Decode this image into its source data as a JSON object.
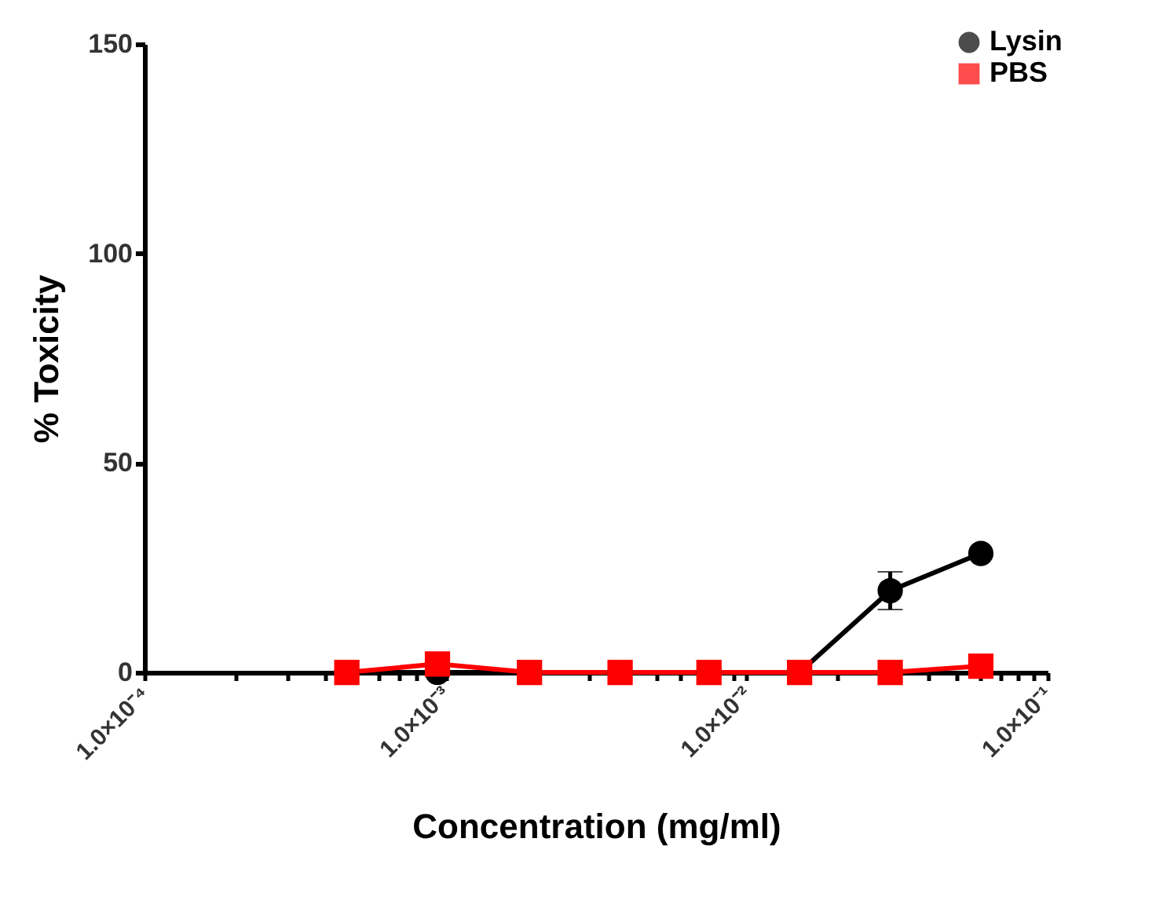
{
  "chart_data": {
    "type": "line",
    "xlabel": "Concentration (mg/ml)",
    "ylabel": "% Toxicity",
    "x": [
      0.00047,
      0.00094,
      0.0019,
      0.0038,
      0.0075,
      0.015,
      0.03,
      0.06
    ],
    "series": [
      {
        "name": "Lysin",
        "color": "#000000",
        "marker": "circle",
        "values": [
          0,
          0,
          0,
          0,
          0,
          0,
          19.5,
          28.4
        ],
        "errors": [
          null,
          null,
          null,
          null,
          null,
          null,
          4.5,
          null
        ]
      },
      {
        "name": "PBS",
        "color": "#ff0000",
        "marker": "square",
        "values": [
          0,
          2,
          0,
          0,
          0,
          0,
          0,
          1.5
        ]
      }
    ],
    "log": "x",
    "xlim": [
      0.0001,
      0.1
    ],
    "xticks": [
      {
        "value": 0.0001,
        "label": "1.0×10⁻⁴"
      },
      {
        "value": 0.0002,
        "label": null
      },
      {
        "value": 0.0003,
        "label": null
      },
      {
        "value": 0.0004,
        "label": null
      },
      {
        "value": 0.0005,
        "label": null
      },
      {
        "value": 0.0006,
        "label": null
      },
      {
        "value": 0.0007,
        "label": null
      },
      {
        "value": 0.0008,
        "label": null
      },
      {
        "value": 0.0009,
        "label": null
      },
      {
        "value": 0.001,
        "label": "1.0×10⁻³"
      },
      {
        "value": 0.002,
        "label": null
      },
      {
        "value": 0.003,
        "label": null
      },
      {
        "value": 0.004,
        "label": null
      },
      {
        "value": 0.005,
        "label": null
      },
      {
        "value": 0.006,
        "label": null
      },
      {
        "value": 0.007,
        "label": null
      },
      {
        "value": 0.008,
        "label": null
      },
      {
        "value": 0.009,
        "label": null
      },
      {
        "value": 0.01,
        "label": "1.0×10⁻²"
      },
      {
        "value": 0.02,
        "label": null
      },
      {
        "value": 0.03,
        "label": null
      },
      {
        "value": 0.04,
        "label": null
      },
      {
        "value": 0.05,
        "label": null
      },
      {
        "value": 0.06,
        "label": null
      },
      {
        "value": 0.07,
        "label": null
      },
      {
        "value": 0.08,
        "label": null
      },
      {
        "value": 0.09,
        "label": null
      },
      {
        "value": 0.1,
        "label": "1.0×10⁻¹"
      }
    ],
    "ylim": [
      0,
      150
    ],
    "yticks": [
      0,
      50,
      100,
      150
    ],
    "grid": false,
    "legend": "top right"
  }
}
